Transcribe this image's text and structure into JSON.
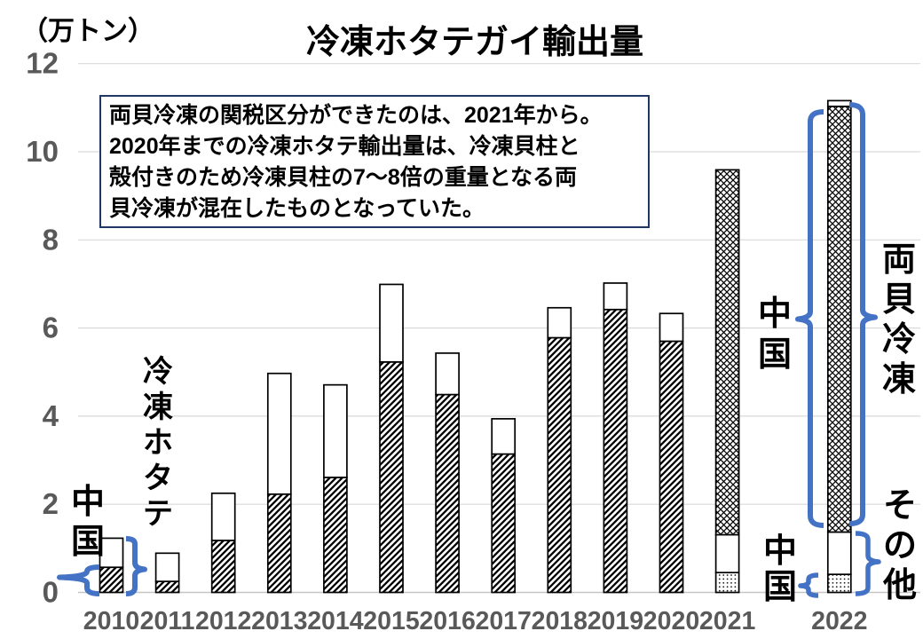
{
  "header": {
    "unit_label": "（万トン）",
    "title": "冷凍ホタテガイ輸出量"
  },
  "note_box": {
    "lines": [
      "両貝冷凍の関税区分ができたのは、2021年から。",
      "2020年までの冷凍ホタテ輸出量は、冷凍貝柱と",
      "殻付きのため冷凍貝柱の7～8倍の重量となる両",
      "貝冷凍が混在したものとなっていた。"
    ]
  },
  "annotations": {
    "frozen_scallop_label": "冷凍ホタテ",
    "china_left_label": "中国",
    "china_top_right_label": "中国",
    "ryogai_reito_label": "両貝冷凍",
    "sonota_label": "その他",
    "china_bottom_right_label": "中国"
  },
  "colors": {
    "brace_blue": "#4472C4",
    "note_border": "#1F3864",
    "axis_text": "#595959",
    "grid": "#D9D9D9",
    "bar_border": "#000000"
  },
  "chart_data": {
    "type": "bar",
    "stacked": true,
    "title": "冷凍ホタテガイ輸出量",
    "unit": "万トン",
    "ylim": [
      0,
      12
    ],
    "yticks": [
      0,
      2,
      4,
      6,
      8,
      10,
      12
    ],
    "grid": true,
    "pattern_styles": {
      "diag": "black diagonal hatch (///)",
      "cross": "black diamond crosshatch",
      "dots": "fine black dots",
      "white": "plain white"
    },
    "bars": [
      {
        "year": "2010",
        "slot": 0,
        "total": 1.23,
        "segments": [
          {
            "pattern": "diag",
            "value": 0.57
          },
          {
            "pattern": "white",
            "value": 0.66
          }
        ]
      },
      {
        "year": "2011",
        "slot": 1,
        "total": 0.89,
        "segments": [
          {
            "pattern": "diag",
            "value": 0.25
          },
          {
            "pattern": "white",
            "value": 0.64
          }
        ]
      },
      {
        "year": "2012",
        "slot": 2,
        "total": 2.25,
        "segments": [
          {
            "pattern": "diag",
            "value": 1.18
          },
          {
            "pattern": "white",
            "value": 1.07
          }
        ]
      },
      {
        "year": "2013",
        "slot": 3,
        "total": 4.97,
        "segments": [
          {
            "pattern": "diag",
            "value": 2.23
          },
          {
            "pattern": "white",
            "value": 2.74
          }
        ]
      },
      {
        "year": "2014",
        "slot": 4,
        "total": 4.71,
        "segments": [
          {
            "pattern": "diag",
            "value": 2.61
          },
          {
            "pattern": "white",
            "value": 2.1
          }
        ]
      },
      {
        "year": "2015",
        "slot": 5,
        "total": 6.99,
        "segments": [
          {
            "pattern": "diag",
            "value": 5.23
          },
          {
            "pattern": "white",
            "value": 1.76
          }
        ]
      },
      {
        "year": "2016",
        "slot": 6,
        "total": 5.43,
        "segments": [
          {
            "pattern": "diag",
            "value": 4.49
          },
          {
            "pattern": "white",
            "value": 0.94
          }
        ]
      },
      {
        "year": "2017",
        "slot": 7,
        "total": 3.94,
        "segments": [
          {
            "pattern": "diag",
            "value": 3.14
          },
          {
            "pattern": "white",
            "value": 0.8
          }
        ]
      },
      {
        "year": "2018",
        "slot": 8,
        "total": 6.46,
        "segments": [
          {
            "pattern": "diag",
            "value": 5.78
          },
          {
            "pattern": "white",
            "value": 0.68
          }
        ]
      },
      {
        "year": "2019",
        "slot": 9,
        "total": 7.02,
        "segments": [
          {
            "pattern": "diag",
            "value": 6.42
          },
          {
            "pattern": "white",
            "value": 0.6
          }
        ]
      },
      {
        "year": "2020",
        "slot": 10,
        "total": 6.33,
        "segments": [
          {
            "pattern": "diag",
            "value": 5.7
          },
          {
            "pattern": "white",
            "value": 0.63
          }
        ]
      },
      {
        "year": "2021",
        "slot": 11,
        "total": 9.59,
        "segments": [
          {
            "pattern": "dots",
            "value": 0.45
          },
          {
            "pattern": "white",
            "value": 0.86
          },
          {
            "pattern": "cross",
            "value": 8.28
          }
        ]
      },
      {
        "year": "2022",
        "slot": 13,
        "total": 11.16,
        "segments": [
          {
            "pattern": "dots",
            "value": 0.41
          },
          {
            "pattern": "white",
            "value": 0.96
          },
          {
            "pattern": "cross",
            "value": 9.66
          },
          {
            "pattern": "white",
            "value": 0.13
          }
        ]
      }
    ],
    "braces": [
      {
        "label": "中国",
        "target": "2010 bar diagonal-hatch segment (0–0.57)",
        "side": "left of 2010 bar"
      },
      {
        "label": "冷凍ホタテ",
        "target": "2010 bar full height (0–1.23)",
        "side": "right of 2010 bar"
      },
      {
        "label": "中国",
        "target": "2022 bar crosshatch segment (1.37–11.03)",
        "side": "left of 2022 bar"
      },
      {
        "label": "両貝冷凍",
        "target": "2022 bar upper part (1.37–11.16)",
        "side": "right of 2022 bar"
      },
      {
        "label": "その他",
        "target": "2022 bar white+dotted lower part (0–1.37)",
        "side": "right of 2022 bar"
      },
      {
        "label": "中国",
        "target": "2022 bar dotted segment (0–0.41)",
        "side": "left of 2022 bar"
      }
    ]
  }
}
